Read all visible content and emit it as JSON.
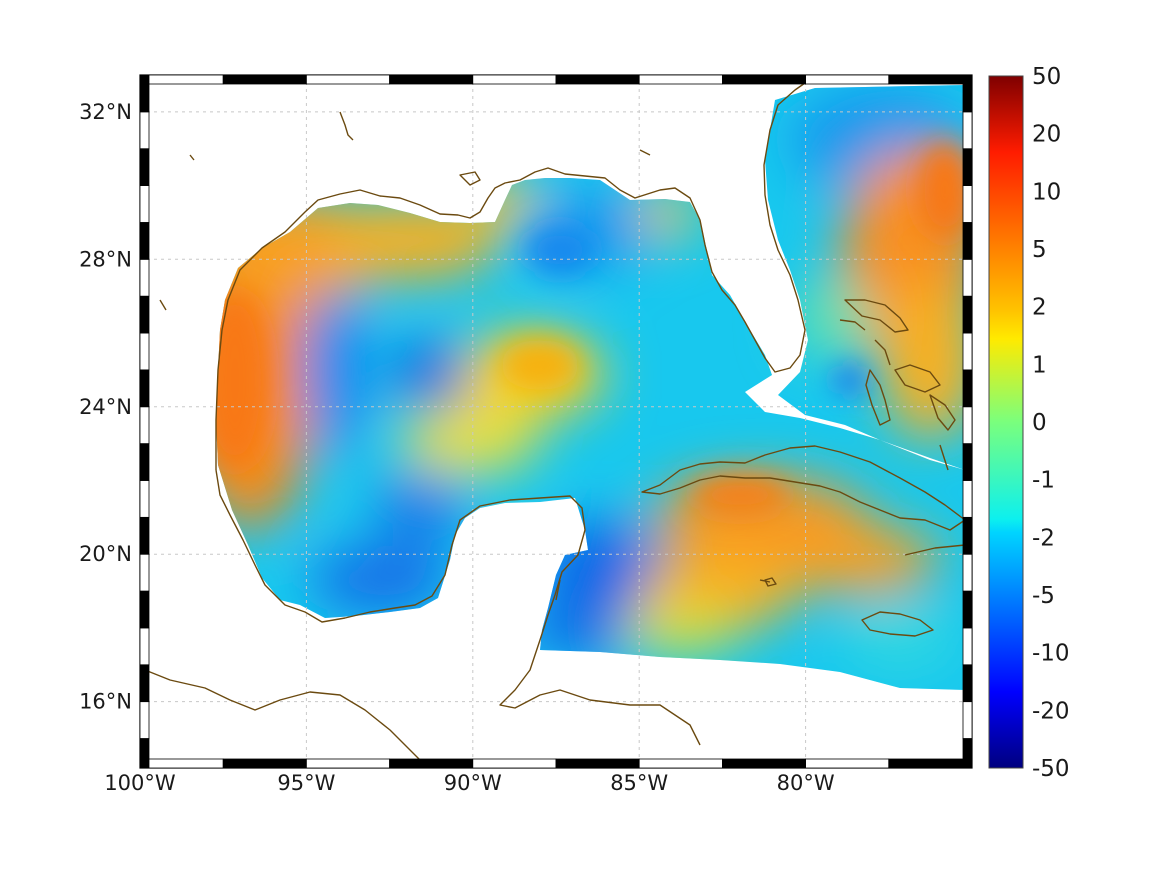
{
  "map": {
    "lon_range": [
      -100,
      -75
    ],
    "lat_range": [
      14.2,
      33
    ],
    "lon_ticks": [
      {
        "value": -100,
        "label": "100°W"
      },
      {
        "value": -95,
        "label": "95°W"
      },
      {
        "value": -90,
        "label": "90°W"
      },
      {
        "value": -85,
        "label": "85°W"
      },
      {
        "value": -80,
        "label": "80°W"
      }
    ],
    "lat_ticks": [
      {
        "value": 32,
        "label": "32°N"
      },
      {
        "value": 28,
        "label": "28°N"
      },
      {
        "value": 24,
        "label": "24°N"
      },
      {
        "value": 20,
        "label": "20°N"
      },
      {
        "value": 16,
        "label": "16°N"
      }
    ],
    "grid": true,
    "coastline_color": "#6b4a10",
    "land_color": "#ffffff",
    "colormap": "jet"
  },
  "colorbar": {
    "orientation": "vertical",
    "position": "right",
    "labels": [
      "50",
      "20",
      "10",
      "5",
      "2",
      "1",
      "0",
      "-1",
      "-2",
      "-5",
      "-10",
      "-20",
      "-50"
    ]
  }
}
